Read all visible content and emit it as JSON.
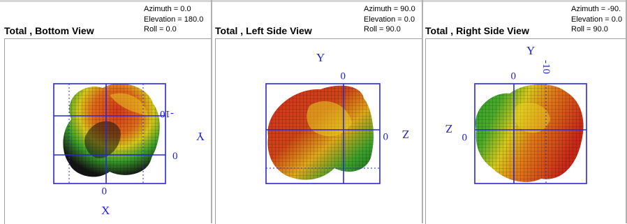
{
  "panels": [
    {
      "title": "Total , Bottom View",
      "azimuth": "Azimuth = 0.0",
      "elevation": "Elevation = 180.0",
      "roll": "Roll = 0.0",
      "labels": {
        "x_axis": "X",
        "x_zero": "0",
        "y_axis": "Y",
        "y_zero": "0",
        "y_tick": "-10"
      }
    },
    {
      "title": "Total , Left Side View",
      "azimuth": "Azimuth = 90.0",
      "elevation": "Elevation = 0.0",
      "roll": "Roll = 90.0",
      "labels": {
        "y_axis": "Y",
        "y_zero": "0",
        "z_axis": "Z",
        "z_zero": "0"
      }
    },
    {
      "title": "Total , Right Side View",
      "azimuth": "Azimuth = -90.",
      "elevation": "Elevation = 0.0",
      "roll": "Roll = 90.0",
      "labels": {
        "y_axis": "Y",
        "y_zero": "0",
        "y_tick": "-10",
        "z_axis": "Z",
        "z_zero": "0"
      }
    }
  ],
  "colors": {
    "axis_frame": "#2828d8",
    "label": "#2222dd",
    "pattern_red": "#d0301c",
    "pattern_orange": "#e08a18",
    "pattern_yellow": "#e8d820",
    "pattern_green": "#2da02a",
    "pattern_dark": "#141414"
  }
}
